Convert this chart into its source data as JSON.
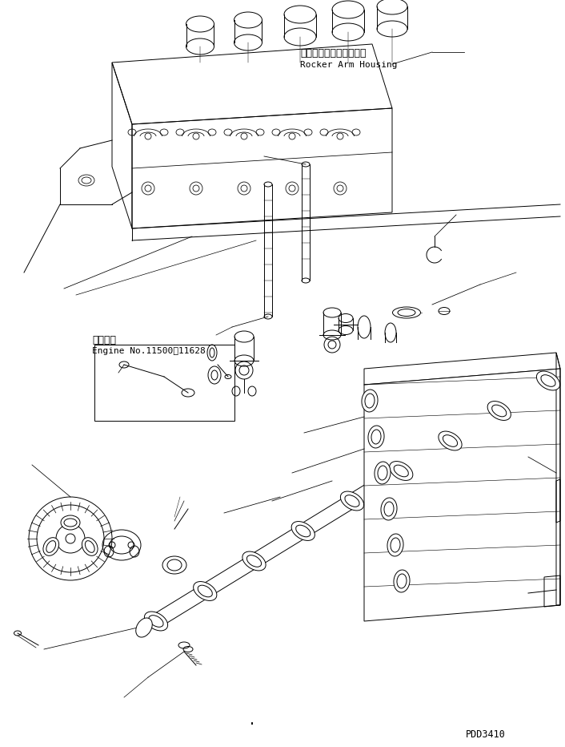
{
  "background_color": "#ffffff",
  "line_color": "#000000",
  "japanese_label1": "ロッカアームハウジング",
  "english_label1": "Rocker Arm Housing",
  "japanese_label2": "適用号機",
  "english_label2": "Engine No.11500～11628",
  "part_number": "PDD3410",
  "fig_width": 7.06,
  "fig_height": 9.32,
  "dpi": 100
}
